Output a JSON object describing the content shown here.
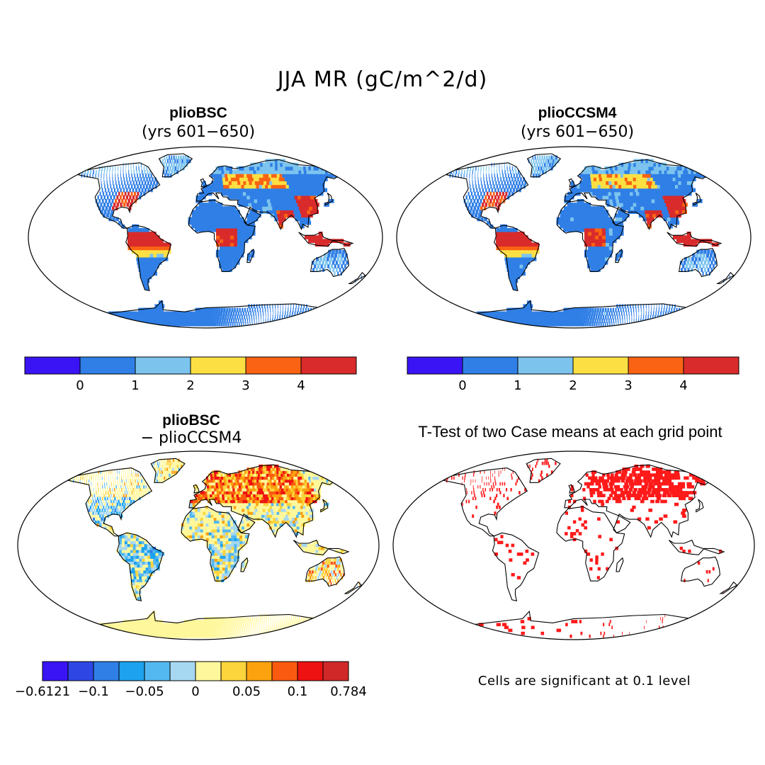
{
  "title": "JJA MR (gC/m^2/d)",
  "panels": [
    {
      "id": "bsc",
      "title": "plioBSC",
      "subtitle": "(yrs 601−650)"
    },
    {
      "id": "ccsm4",
      "title": "plioCCSM4",
      "subtitle": "(yrs 601−650)"
    },
    {
      "id": "diff",
      "title": "plioBSC",
      "subtitle": "− plioCCSM4"
    },
    {
      "id": "ttest",
      "title": "T-Test of two Case means at each grid point",
      "subtitle": ""
    }
  ],
  "colorbar_main": {
    "colors": [
      "#3a14f5",
      "#2f7fe6",
      "#7cc4ee",
      "#fce043",
      "#fa6313",
      "#d92b2b"
    ],
    "labels": [
      "0",
      "1",
      "2",
      "3",
      "4"
    ]
  },
  "colorbar_diff": {
    "colors": [
      "#3a14f5",
      "#2e47e4",
      "#2f7fe6",
      "#1ca2ee",
      "#54b8f0",
      "#a6d8f2",
      "#fff79b",
      "#fcd43c",
      "#fca20e",
      "#fa5a10",
      "#ee1212",
      "#d02828"
    ],
    "labels": [
      "−0.6121",
      "−0.1",
      "−0.05",
      "0",
      "0.05",
      "0.1",
      "0.784"
    ]
  },
  "significance_note": "Cells are significant at 0.1 level",
  "significance_color": "#ff1a1a"
}
